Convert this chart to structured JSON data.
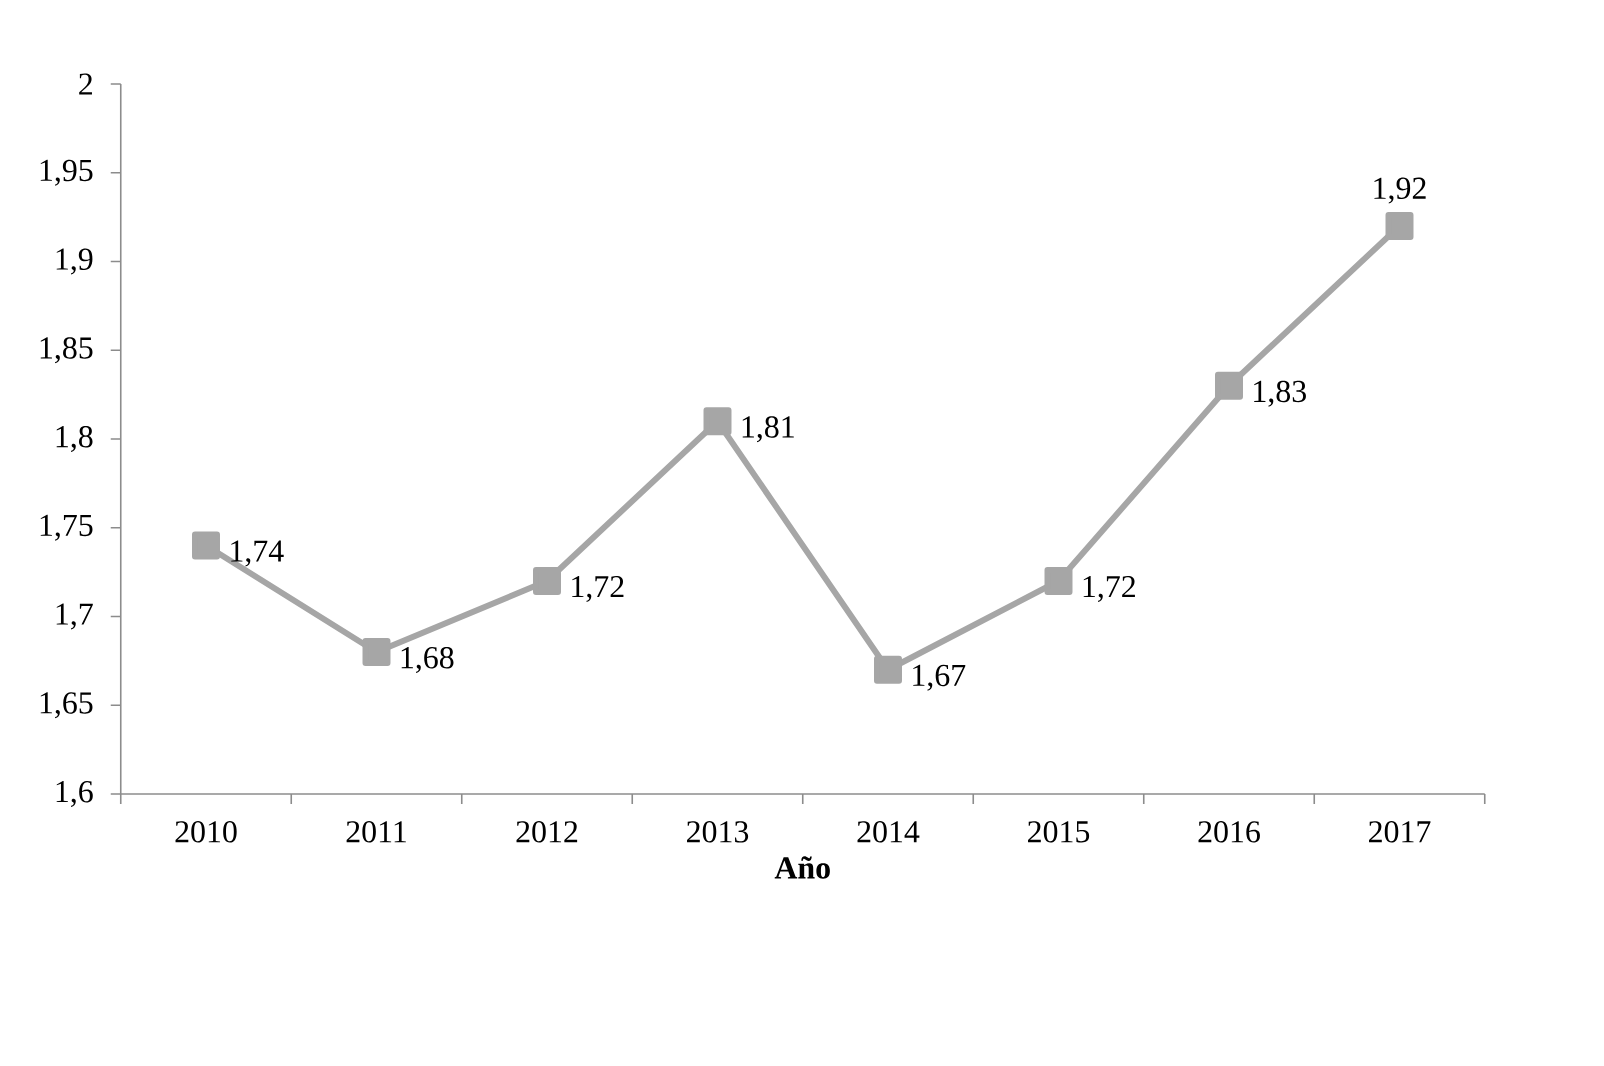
{
  "chart_data": {
    "type": "line",
    "xlabel": "Año",
    "categories": [
      "2010",
      "2011",
      "2012",
      "2013",
      "2014",
      "2015",
      "2016",
      "2017"
    ],
    "series": [
      {
        "color": "#a6a6a6",
        "values": [
          1.74,
          1.68,
          1.72,
          1.81,
          1.67,
          1.72,
          1.83,
          1.92
        ],
        "value_labels": [
          "1,74",
          "1,68",
          "1,72",
          "1,81",
          "1,67",
          "1,72",
          "1,83",
          "1,92"
        ]
      }
    ],
    "ylim": [
      1.6,
      2
    ],
    "yticks": [
      {
        "value": 1.6,
        "label": "1,6"
      },
      {
        "value": 1.65,
        "label": "1,65"
      },
      {
        "value": 1.7,
        "label": "1,7"
      },
      {
        "value": 1.75,
        "label": "1,75"
      },
      {
        "value": 1.8,
        "label": "1,8"
      },
      {
        "value": 1.85,
        "label": "1,85"
      },
      {
        "value": 1.9,
        "label": "1,9"
      },
      {
        "value": 1.95,
        "label": "1,95"
      },
      2
    ],
    "marker": "square",
    "line_style": "solid"
  }
}
